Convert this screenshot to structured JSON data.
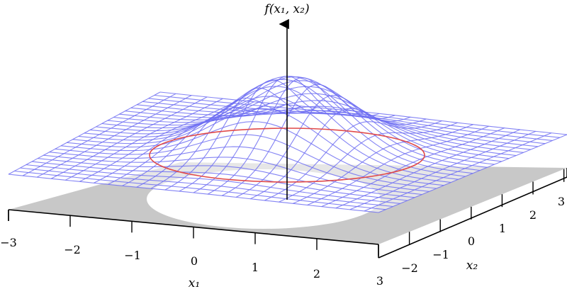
{
  "figure": {
    "z_axis_label": "f(x₁, x₂)",
    "x_axis_label": "x₁",
    "y_axis_label": "x₂",
    "x_ticks": [
      "−3",
      "−2",
      "−1",
      "0",
      "1",
      "2",
      "3"
    ],
    "y_ticks": [
      "−2",
      "−1",
      "0",
      "1",
      "2",
      "3"
    ]
  },
  "colors": {
    "mesh": "#6f6ff2",
    "contour": "#e04a4a",
    "floor": "#c8c8c8",
    "shadow": "#ffffff",
    "axis": "#000000"
  }
}
